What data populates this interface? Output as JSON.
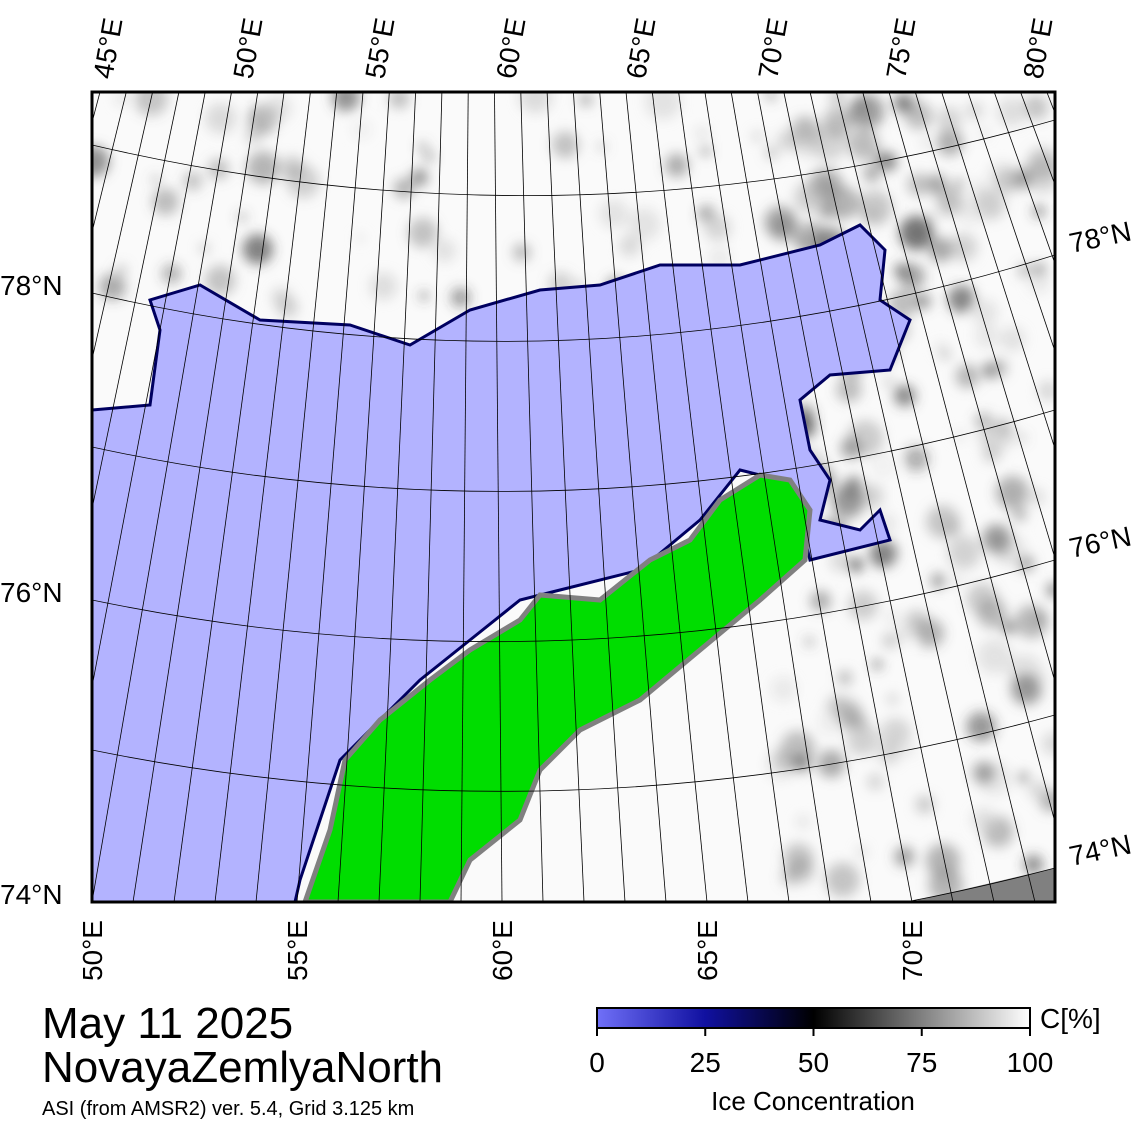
{
  "title": {
    "date": "May 11 2025",
    "region": "NovayaZemlyaNorth",
    "source": "ASI (from AMSR2) ver. 5.4,  Grid 3.125 km"
  },
  "map": {
    "top_labels": [
      "45°E",
      "50°E",
      "55°E",
      "60°E",
      "65°E",
      "70°E",
      "75°E",
      "80°E"
    ],
    "bottom_labels": [
      "50°E",
      "55°E",
      "60°E",
      "65°E",
      "70°E"
    ],
    "left_labels": [
      "78°N",
      "76°N",
      "74°N"
    ],
    "right_labels": [
      "78°N",
      "76°N",
      "74°N"
    ]
  },
  "colorbar": {
    "unit": "C[%]",
    "label": "Ice Concentration",
    "range": [
      0,
      100
    ],
    "ticks": [
      0,
      25,
      50,
      75,
      100
    ]
  }
}
